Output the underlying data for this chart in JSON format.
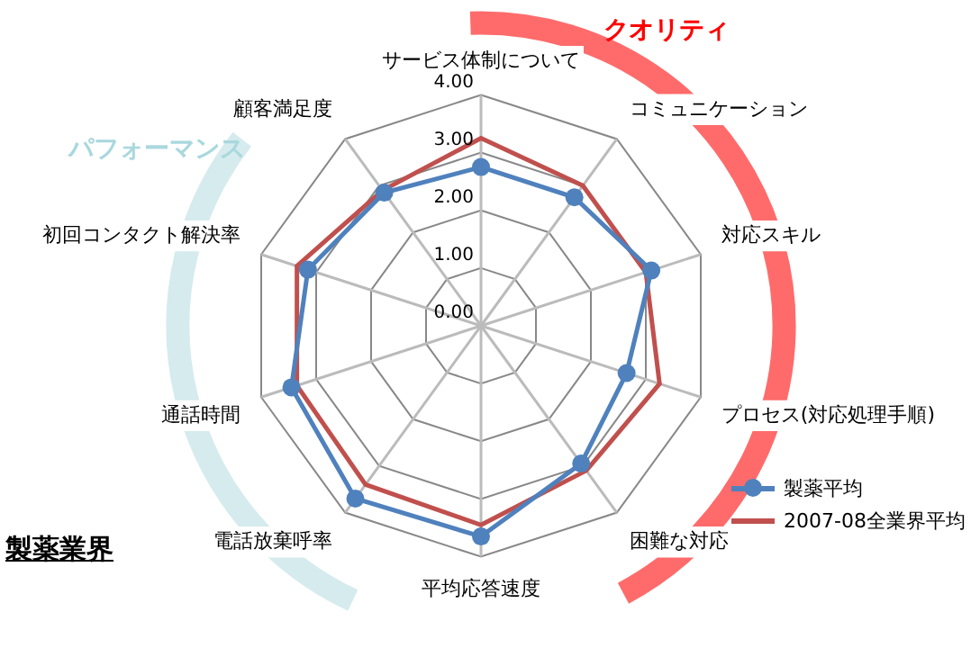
{
  "chart_data": {
    "type": "radar",
    "categories": [
      "サービス体制について",
      "コミュニケーション",
      "対応スキル",
      "プロセス(対応処理手順)",
      "困難な対応",
      "平均応答速度",
      "電話放棄呼率",
      "通話時間",
      "初回コンタクト解決率",
      "顧客満足度"
    ],
    "series": [
      {
        "name": "製薬平均",
        "color": "#4f81bd",
        "marker": "circle",
        "values": [
          2.75,
          2.75,
          3.1,
          2.65,
          2.95,
          3.65,
          3.7,
          3.45,
          3.15,
          2.85
        ]
      },
      {
        "name": "2007-08全業界平均",
        "color": "#c0504d",
        "marker": "none",
        "values": [
          3.25,
          3.0,
          3.0,
          3.25,
          3.1,
          3.45,
          3.4,
          3.35,
          3.35,
          2.9
        ]
      }
    ],
    "ylim": [
      0,
      4
    ],
    "yticks": [
      {
        "value": 0,
        "label": "0.00"
      },
      {
        "value": 1,
        "label": "1.00"
      },
      {
        "value": 2,
        "label": "2.00"
      },
      {
        "value": 3,
        "label": "3.00"
      },
      {
        "value": 4,
        "label": "4.00"
      }
    ],
    "grid": true,
    "legend": "bottom right",
    "annotations": [
      "クオリティ",
      "パフォーマンス",
      "製薬業界"
    ]
  }
}
